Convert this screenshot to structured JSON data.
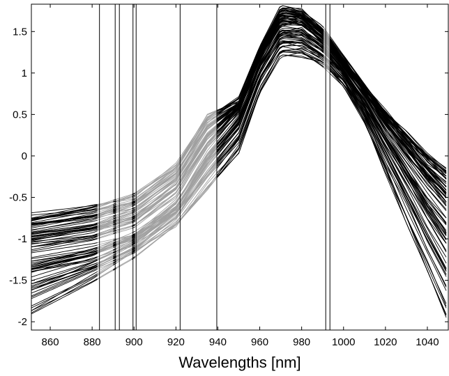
{
  "chart_data": {
    "type": "line",
    "title": "",
    "xlabel": "Wavelengths [nm]",
    "ylabel": "",
    "xlim": [
      851,
      1050
    ],
    "ylim": [
      -2.1,
      1.83
    ],
    "grid": false,
    "legend": "none",
    "x_ticks": [
      860,
      880,
      900,
      920,
      940,
      960,
      980,
      1000,
      1020,
      1040
    ],
    "y_ticks": [
      1.5,
      1,
      0.5,
      0,
      -0.5,
      -1,
      -1.5,
      -2
    ],
    "x_tick_labels": [
      "860",
      "880",
      "900",
      "920",
      "940",
      "960",
      "980",
      "1000",
      "1020",
      "1040"
    ],
    "y_tick_labels": [
      "1.5",
      "1",
      "0.5",
      "0",
      "-0.5",
      "-1",
      "-1.5",
      "-2"
    ],
    "colors": {
      "spectra": "#000000",
      "selected_region": "#a0a0a0",
      "markers": "#000000",
      "background": "#ffffff"
    },
    "selected_intervals": [
      [
        883.5,
        891
      ],
      [
        893,
        899.5
      ],
      [
        901,
        922
      ],
      [
        922,
        939.5
      ],
      [
        991.5,
        993.5
      ]
    ],
    "vertical_markers": [
      883.5,
      891,
      893,
      899.5,
      901,
      922,
      939.5,
      991.5,
      993.5
    ],
    "series_count": 90,
    "series": [
      {
        "role": "upper envelope",
        "x": [
          851,
          880,
          900,
          920,
          935,
          950,
          960,
          970,
          980,
          990,
          1000,
          1010,
          1020,
          1030,
          1040,
          1050
        ],
        "values": [
          -0.7,
          -0.6,
          -0.45,
          -0.1,
          0.5,
          0.7,
          1.3,
          1.82,
          1.75,
          1.55,
          1.2,
          0.85,
          0.55,
          0.3,
          0.05,
          -0.15
        ]
      },
      {
        "role": "typical",
        "x": [
          851,
          880,
          900,
          920,
          935,
          950,
          960,
          970,
          980,
          990,
          1000,
          1010,
          1020,
          1030,
          1040,
          1050
        ],
        "values": [
          -1.2,
          -1.1,
          -0.95,
          -0.55,
          0.05,
          0.5,
          1.15,
          1.55,
          1.55,
          1.35,
          1.05,
          0.7,
          0.3,
          -0.05,
          -0.4,
          -0.7
        ]
      },
      {
        "role": "lower envelope",
        "x": [
          851,
          880,
          900,
          920,
          935,
          950,
          960,
          970,
          980,
          990,
          1000,
          1010,
          1020,
          1030,
          1040,
          1050
        ],
        "values": [
          -1.9,
          -1.5,
          -1.2,
          -0.85,
          -0.4,
          0.05,
          0.75,
          1.2,
          1.2,
          1.1,
          0.85,
          0.4,
          -0.2,
          -0.8,
          -1.4,
          -2.0
        ]
      }
    ]
  }
}
